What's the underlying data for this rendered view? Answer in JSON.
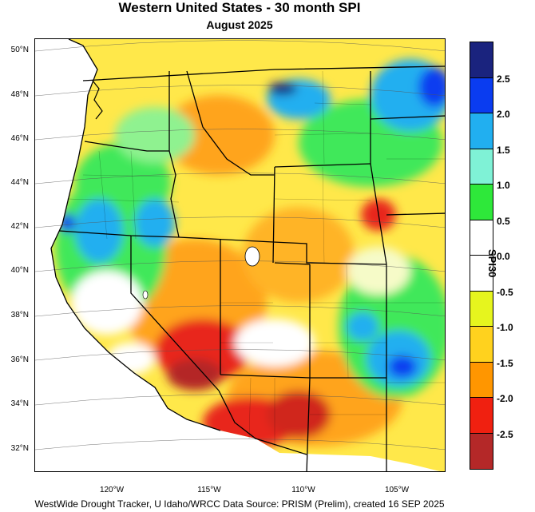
{
  "title": "Western United States - 30 month SPI",
  "subtitle": "August 2025",
  "latitude_labels": [
    "50°N",
    "48°N",
    "46°N",
    "44°N",
    "42°N",
    "40°N",
    "38°N",
    "36°N",
    "34°N",
    "32°N"
  ],
  "longitude_labels": [
    "120°W",
    "115°W",
    "110°W",
    "105°W"
  ],
  "colorbar": {
    "title": "SPI30",
    "labels": [
      "2.5",
      "2.0",
      "1.5",
      "1.0",
      "0.5",
      "0.0",
      "-0.5",
      "-1.0",
      "-1.5",
      "-2.0",
      "-2.5"
    ],
    "bins": [
      {
        "color": "#1a237e"
      },
      {
        "color": "#0a3cf0"
      },
      {
        "color": "#21aff0"
      },
      {
        "color": "#7ff2d6"
      },
      {
        "color": "#2ee83a"
      },
      {
        "color": "#ffffff"
      },
      {
        "color": "#ffffff"
      },
      {
        "color": "#e6f51e"
      },
      {
        "color": "#ffd21e"
      },
      {
        "color": "#ff9600"
      },
      {
        "color": "#f02010"
      },
      {
        "color": "#b42828"
      }
    ]
  },
  "footer": "WestWide Drought Tracker, U Idaho/WRCC Data Source: PRISM (Prelim), created 16 SEP 2025"
}
